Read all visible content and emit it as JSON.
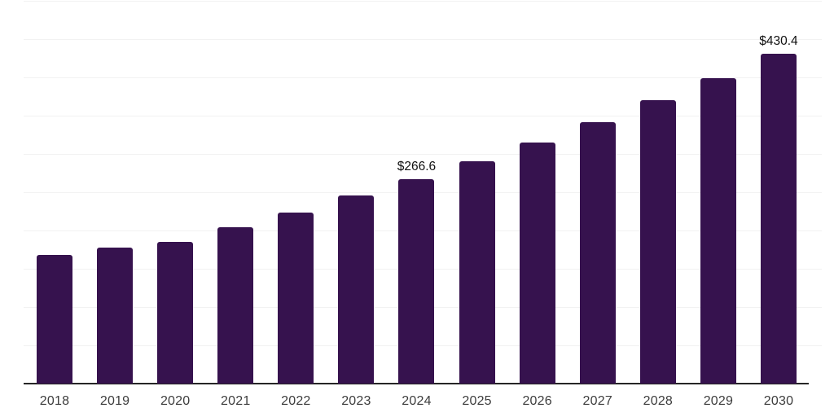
{
  "chart_data": {
    "type": "bar",
    "title": "",
    "xlabel": "",
    "ylabel": "",
    "categories": [
      "2018",
      "2019",
      "2020",
      "2021",
      "2022",
      "2023",
      "2024",
      "2025",
      "2026",
      "2027",
      "2028",
      "2029",
      "2030"
    ],
    "values": [
      168,
      178,
      185,
      204,
      223,
      246,
      266.6,
      290,
      315,
      342,
      370,
      399,
      430.4
    ],
    "data_labels": {
      "2024": "$266.6",
      "2030": "$430.4"
    },
    "ylim": [
      0,
      500
    ],
    "gridline_step": 50,
    "grid": true,
    "legend": "none",
    "colors": {
      "bar": "#36124e",
      "gridline": "#f2f2f2",
      "axis_line": "#262626",
      "tick_label": "#3d3d3d",
      "data_label": "#111111",
      "background": "#ffffff"
    }
  }
}
